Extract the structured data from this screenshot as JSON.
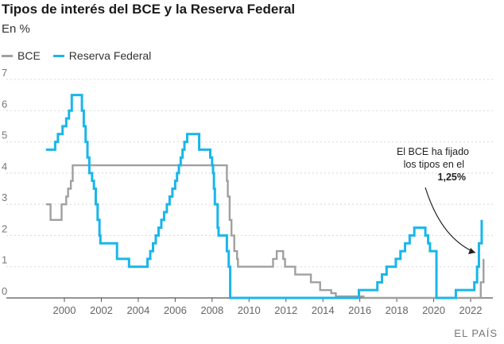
{
  "chart_data": {
    "type": "line",
    "title": "Tipos de interés del BCE y la Reserva Federal",
    "subtitle": "En %",
    "ylim": [
      0,
      7
    ],
    "xlim": [
      1998.5,
      2023.0
    ],
    "y_ticks": [
      0,
      1,
      2,
      3,
      4,
      5,
      6,
      7
    ],
    "x_ticks": [
      2000,
      2002,
      2004,
      2006,
      2008,
      2010,
      2012,
      2014,
      2016,
      2018,
      2020,
      2022
    ],
    "grid": true,
    "legend": "top-left",
    "series": [
      {
        "name": "BCE",
        "color": "#a0a0a0",
        "points": [
          [
            1999.0,
            3.0
          ],
          [
            1999.25,
            2.5
          ],
          [
            1999.85,
            3.0
          ],
          [
            2000.1,
            3.25
          ],
          [
            2000.2,
            3.5
          ],
          [
            2000.35,
            3.75
          ],
          [
            2000.45,
            4.25
          ],
          [
            2000.75,
            4.25
          ],
          [
            2008.5,
            4.25
          ],
          [
            2008.8,
            3.75
          ],
          [
            2008.85,
            3.25
          ],
          [
            2008.95,
            2.5
          ],
          [
            2009.05,
            2.0
          ],
          [
            2009.2,
            1.5
          ],
          [
            2009.35,
            1.25
          ],
          [
            2009.4,
            1.0
          ],
          [
            2011.3,
            1.25
          ],
          [
            2011.5,
            1.5
          ],
          [
            2011.85,
            1.25
          ],
          [
            2011.95,
            1.0
          ],
          [
            2012.5,
            0.75
          ],
          [
            2013.35,
            0.5
          ],
          [
            2013.85,
            0.25
          ],
          [
            2014.45,
            0.15
          ],
          [
            2014.7,
            0.05
          ],
          [
            2016.2,
            0.0
          ],
          [
            2022.5,
            0.0
          ],
          [
            2022.55,
            0.5
          ],
          [
            2022.7,
            1.25
          ]
        ]
      },
      {
        "name": "Reserva Federal",
        "color": "#1ab6ea",
        "points": [
          [
            1999.0,
            4.75
          ],
          [
            1999.5,
            5.0
          ],
          [
            1999.65,
            5.25
          ],
          [
            1999.9,
            5.5
          ],
          [
            2000.1,
            5.75
          ],
          [
            2000.25,
            6.0
          ],
          [
            2000.4,
            6.5
          ],
          [
            2000.95,
            6.0
          ],
          [
            2001.05,
            5.5
          ],
          [
            2001.15,
            5.0
          ],
          [
            2001.25,
            4.5
          ],
          [
            2001.35,
            4.0
          ],
          [
            2001.5,
            3.75
          ],
          [
            2001.6,
            3.5
          ],
          [
            2001.7,
            3.0
          ],
          [
            2001.8,
            2.5
          ],
          [
            2001.9,
            2.0
          ],
          [
            2001.95,
            1.75
          ],
          [
            2002.85,
            1.25
          ],
          [
            2003.5,
            1.0
          ],
          [
            2004.5,
            1.25
          ],
          [
            2004.65,
            1.5
          ],
          [
            2004.8,
            1.75
          ],
          [
            2004.95,
            2.0
          ],
          [
            2005.1,
            2.25
          ],
          [
            2005.25,
            2.5
          ],
          [
            2005.4,
            2.75
          ],
          [
            2005.55,
            3.0
          ],
          [
            2005.7,
            3.25
          ],
          [
            2005.85,
            3.5
          ],
          [
            2006.0,
            3.75
          ],
          [
            2006.1,
            4.0
          ],
          [
            2006.2,
            4.25
          ],
          [
            2006.3,
            4.5
          ],
          [
            2006.4,
            4.75
          ],
          [
            2006.5,
            5.0
          ],
          [
            2006.65,
            5.25
          ],
          [
            2007.3,
            4.75
          ],
          [
            2007.9,
            4.5
          ],
          [
            2008.0,
            4.25
          ],
          [
            2008.05,
            4.0
          ],
          [
            2008.1,
            3.5
          ],
          [
            2008.15,
            3.0
          ],
          [
            2008.3,
            2.25
          ],
          [
            2008.35,
            2.0
          ],
          [
            2008.8,
            1.5
          ],
          [
            2008.9,
            1.0
          ],
          [
            2008.98,
            0.0
          ],
          [
            2015.95,
            0.25
          ],
          [
            2016.95,
            0.5
          ],
          [
            2017.2,
            0.75
          ],
          [
            2017.45,
            1.0
          ],
          [
            2017.95,
            1.25
          ],
          [
            2018.2,
            1.5
          ],
          [
            2018.45,
            1.75
          ],
          [
            2018.7,
            2.0
          ],
          [
            2018.95,
            2.25
          ],
          [
            2019.55,
            2.0
          ],
          [
            2019.7,
            1.75
          ],
          [
            2019.8,
            1.5
          ],
          [
            2020.15,
            0.0
          ],
          [
            2021.2,
            0.25
          ],
          [
            2022.2,
            0.5
          ],
          [
            2022.35,
            1.0
          ],
          [
            2022.45,
            1.75
          ],
          [
            2022.6,
            2.5
          ]
        ]
      }
    ],
    "annotation": {
      "text_lines": [
        "El BCE ha fijado",
        "los tipos en el"
      ],
      "text_bold": "1,25%"
    },
    "source": "EL PAÍS"
  }
}
